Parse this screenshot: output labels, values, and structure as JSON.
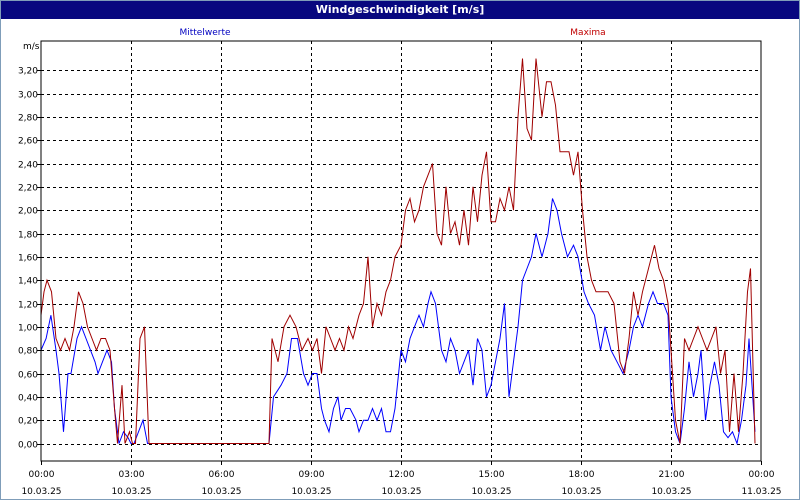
{
  "window": {
    "title": "Windgeschwindigkeit [m/s]"
  },
  "chart_data": {
    "type": "line",
    "title": "Windgeschwindigkeit [m/s]",
    "ylabel": "m/s",
    "xlabel": "",
    "ylim": [
      -0.15,
      3.45
    ],
    "xlim_hours": [
      0,
      24
    ],
    "grid": true,
    "y_ticks": [
      "0,00",
      "0,20",
      "0,40",
      "0,60",
      "0,80",
      "1,00",
      "1,20",
      "1,40",
      "1,60",
      "1,80",
      "2,00",
      "2,20",
      "2,40",
      "2,60",
      "2,80",
      "3,00",
      "3,20"
    ],
    "y_tick_values": [
      0,
      0.2,
      0.4,
      0.6,
      0.8,
      1.0,
      1.2,
      1.4,
      1.6,
      1.8,
      2.0,
      2.2,
      2.4,
      2.6,
      2.8,
      3.0,
      3.2
    ],
    "x_ticks": [
      {
        "time": "00:00",
        "date": "10.03.25",
        "hour": 0
      },
      {
        "time": "03:00",
        "date": "10.03.25",
        "hour": 3
      },
      {
        "time": "06:00",
        "date": "10.03.25",
        "hour": 6
      },
      {
        "time": "09:00",
        "date": "10.03.25",
        "hour": 9
      },
      {
        "time": "12:00",
        "date": "10.03.25",
        "hour": 12
      },
      {
        "time": "15:00",
        "date": "10.03.25",
        "hour": 15
      },
      {
        "time": "18:00",
        "date": "10.03.25",
        "hour": 18
      },
      {
        "time": "21:00",
        "date": "10.03.25",
        "hour": 21
      },
      {
        "time": "00:00",
        "date": "11.03.25",
        "hour": 24
      }
    ],
    "series": [
      {
        "name": "Mittelwerte",
        "color": "#0000ff",
        "points": [
          [
            0,
            0.8
          ],
          [
            0.17,
            0.9
          ],
          [
            0.33,
            1.1
          ],
          [
            0.5,
            0.8
          ],
          [
            0.6,
            0.6
          ],
          [
            0.75,
            0.1
          ],
          [
            0.9,
            0.6
          ],
          [
            1.0,
            0.6
          ],
          [
            1.2,
            0.9
          ],
          [
            1.35,
            1.0
          ],
          [
            1.5,
            0.9
          ],
          [
            1.65,
            0.8
          ],
          [
            1.8,
            0.7
          ],
          [
            1.9,
            0.6
          ],
          [
            2.05,
            0.7
          ],
          [
            2.2,
            0.8
          ],
          [
            2.35,
            0.7
          ],
          [
            2.45,
            0.3
          ],
          [
            2.6,
            0.0
          ],
          [
            2.75,
            0.1
          ],
          [
            2.9,
            0.05
          ],
          [
            3.0,
            0.0
          ],
          [
            3.1,
            0.0
          ],
          [
            3.25,
            0.1
          ],
          [
            3.4,
            0.2
          ],
          [
            3.55,
            0.0
          ],
          [
            3.6,
            0.0
          ],
          [
            7.5,
            0.0
          ],
          [
            7.6,
            0.0
          ],
          [
            7.75,
            0.4
          ],
          [
            8.0,
            0.5
          ],
          [
            8.2,
            0.6
          ],
          [
            8.35,
            0.9
          ],
          [
            8.55,
            0.9
          ],
          [
            8.75,
            0.6
          ],
          [
            8.9,
            0.5
          ],
          [
            9.05,
            0.6
          ],
          [
            9.2,
            0.6
          ],
          [
            9.35,
            0.3
          ],
          [
            9.45,
            0.2
          ],
          [
            9.6,
            0.1
          ],
          [
            9.75,
            0.3
          ],
          [
            9.9,
            0.4
          ],
          [
            10.0,
            0.2
          ],
          [
            10.15,
            0.3
          ],
          [
            10.3,
            0.3
          ],
          [
            10.5,
            0.2
          ],
          [
            10.6,
            0.1
          ],
          [
            10.75,
            0.2
          ],
          [
            10.9,
            0.2
          ],
          [
            11.05,
            0.3
          ],
          [
            11.2,
            0.2
          ],
          [
            11.35,
            0.3
          ],
          [
            11.5,
            0.1
          ],
          [
            11.65,
            0.1
          ],
          [
            11.8,
            0.3
          ],
          [
            12.0,
            0.8
          ],
          [
            12.15,
            0.7
          ],
          [
            12.3,
            0.9
          ],
          [
            12.45,
            1.0
          ],
          [
            12.6,
            1.1
          ],
          [
            12.75,
            1.0
          ],
          [
            12.9,
            1.2
          ],
          [
            13.0,
            1.3
          ],
          [
            13.15,
            1.2
          ],
          [
            13.35,
            0.8
          ],
          [
            13.5,
            0.7
          ],
          [
            13.65,
            0.9
          ],
          [
            13.8,
            0.8
          ],
          [
            13.95,
            0.6
          ],
          [
            14.1,
            0.7
          ],
          [
            14.25,
            0.8
          ],
          [
            14.4,
            0.5
          ],
          [
            14.55,
            0.9
          ],
          [
            14.7,
            0.8
          ],
          [
            14.85,
            0.4
          ],
          [
            15.0,
            0.5
          ],
          [
            15.15,
            0.7
          ],
          [
            15.3,
            0.9
          ],
          [
            15.45,
            1.2
          ],
          [
            15.6,
            0.4
          ],
          [
            15.75,
            0.7
          ],
          [
            15.9,
            1.0
          ],
          [
            16.05,
            1.4
          ],
          [
            16.2,
            1.5
          ],
          [
            16.35,
            1.6
          ],
          [
            16.5,
            1.8
          ],
          [
            16.7,
            1.6
          ],
          [
            16.9,
            1.8
          ],
          [
            17.05,
            2.1
          ],
          [
            17.2,
            2.0
          ],
          [
            17.35,
            1.8
          ],
          [
            17.55,
            1.6
          ],
          [
            17.75,
            1.7
          ],
          [
            17.9,
            1.6
          ],
          [
            18.1,
            1.3
          ],
          [
            18.25,
            1.2
          ],
          [
            18.45,
            1.1
          ],
          [
            18.65,
            0.8
          ],
          [
            18.8,
            1.0
          ],
          [
            19.0,
            0.8
          ],
          [
            19.2,
            0.7
          ],
          [
            19.4,
            0.6
          ],
          [
            19.6,
            0.8
          ],
          [
            19.75,
            1.0
          ],
          [
            19.9,
            1.1
          ],
          [
            20.05,
            1.0
          ],
          [
            20.25,
            1.2
          ],
          [
            20.4,
            1.3
          ],
          [
            20.55,
            1.2
          ],
          [
            20.75,
            1.2
          ],
          [
            20.9,
            1.1
          ],
          [
            21.0,
            0.4
          ],
          [
            21.15,
            0.1
          ],
          [
            21.3,
            0.0
          ],
          [
            21.45,
            0.3
          ],
          [
            21.6,
            0.7
          ],
          [
            21.75,
            0.4
          ],
          [
            21.9,
            0.6
          ],
          [
            22.0,
            0.8
          ],
          [
            22.15,
            0.2
          ],
          [
            22.3,
            0.5
          ],
          [
            22.45,
            0.7
          ],
          [
            22.6,
            0.5
          ],
          [
            22.75,
            0.1
          ],
          [
            22.9,
            0.05
          ],
          [
            23.05,
            0.1
          ],
          [
            23.2,
            0.0
          ],
          [
            23.35,
            0.2
          ],
          [
            23.5,
            0.5
          ],
          [
            23.6,
            0.9
          ],
          [
            23.7,
            0.5
          ],
          [
            23.8,
            0.1
          ]
        ]
      },
      {
        "name": "Maxima",
        "color": "#a00000",
        "points": [
          [
            0,
            1.1
          ],
          [
            0.1,
            1.3
          ],
          [
            0.2,
            1.4
          ],
          [
            0.35,
            1.3
          ],
          [
            0.5,
            0.9
          ],
          [
            0.65,
            0.8
          ],
          [
            0.8,
            0.9
          ],
          [
            0.95,
            0.8
          ],
          [
            1.1,
            1.0
          ],
          [
            1.25,
            1.3
          ],
          [
            1.4,
            1.2
          ],
          [
            1.55,
            1.0
          ],
          [
            1.7,
            0.9
          ],
          [
            1.85,
            0.8
          ],
          [
            2.0,
            0.9
          ],
          [
            2.15,
            0.9
          ],
          [
            2.3,
            0.8
          ],
          [
            2.45,
            0.3
          ],
          [
            2.55,
            0.0
          ],
          [
            2.7,
            0.5
          ],
          [
            2.8,
            0.0
          ],
          [
            2.95,
            0.1
          ],
          [
            3.05,
            0.0
          ],
          [
            3.15,
            0.0
          ],
          [
            3.3,
            0.9
          ],
          [
            3.45,
            1.0
          ],
          [
            3.6,
            0.0
          ],
          [
            7.5,
            0.0
          ],
          [
            7.6,
            0.0
          ],
          [
            7.7,
            0.9
          ],
          [
            7.9,
            0.7
          ],
          [
            8.1,
            1.0
          ],
          [
            8.3,
            1.1
          ],
          [
            8.5,
            1.0
          ],
          [
            8.7,
            0.8
          ],
          [
            8.9,
            0.9
          ],
          [
            9.05,
            0.8
          ],
          [
            9.2,
            0.9
          ],
          [
            9.35,
            0.6
          ],
          [
            9.5,
            1.0
          ],
          [
            9.65,
            0.9
          ],
          [
            9.8,
            0.8
          ],
          [
            9.95,
            0.9
          ],
          [
            10.1,
            0.8
          ],
          [
            10.25,
            1.0
          ],
          [
            10.4,
            0.9
          ],
          [
            10.6,
            1.1
          ],
          [
            10.75,
            1.2
          ],
          [
            10.9,
            1.6
          ],
          [
            11.05,
            1.0
          ],
          [
            11.2,
            1.2
          ],
          [
            11.35,
            1.1
          ],
          [
            11.5,
            1.3
          ],
          [
            11.65,
            1.4
          ],
          [
            11.8,
            1.6
          ],
          [
            12.0,
            1.7
          ],
          [
            12.15,
            2.0
          ],
          [
            12.3,
            2.1
          ],
          [
            12.45,
            1.9
          ],
          [
            12.6,
            2.0
          ],
          [
            12.75,
            2.2
          ],
          [
            12.9,
            2.3
          ],
          [
            13.05,
            2.4
          ],
          [
            13.2,
            1.8
          ],
          [
            13.35,
            1.7
          ],
          [
            13.5,
            2.2
          ],
          [
            13.65,
            1.8
          ],
          [
            13.8,
            1.9
          ],
          [
            13.95,
            1.7
          ],
          [
            14.1,
            2.0
          ],
          [
            14.25,
            1.7
          ],
          [
            14.4,
            2.2
          ],
          [
            14.55,
            1.9
          ],
          [
            14.7,
            2.3
          ],
          [
            14.85,
            2.5
          ],
          [
            15.0,
            1.9
          ],
          [
            15.15,
            1.9
          ],
          [
            15.3,
            2.1
          ],
          [
            15.45,
            2.0
          ],
          [
            15.6,
            2.2
          ],
          [
            15.75,
            2.0
          ],
          [
            15.9,
            2.8
          ],
          [
            16.05,
            3.3
          ],
          [
            16.2,
            2.7
          ],
          [
            16.35,
            2.6
          ],
          [
            16.5,
            3.3
          ],
          [
            16.7,
            2.8
          ],
          [
            16.85,
            3.1
          ],
          [
            17.0,
            3.1
          ],
          [
            17.15,
            2.9
          ],
          [
            17.3,
            2.5
          ],
          [
            17.45,
            2.5
          ],
          [
            17.6,
            2.5
          ],
          [
            17.75,
            2.3
          ],
          [
            17.9,
            2.5
          ],
          [
            18.05,
            2.0
          ],
          [
            18.2,
            1.6
          ],
          [
            18.35,
            1.4
          ],
          [
            18.5,
            1.3
          ],
          [
            18.7,
            1.3
          ],
          [
            18.9,
            1.3
          ],
          [
            19.1,
            1.2
          ],
          [
            19.3,
            0.7
          ],
          [
            19.45,
            0.6
          ],
          [
            19.6,
            0.9
          ],
          [
            19.75,
            1.3
          ],
          [
            19.9,
            1.1
          ],
          [
            20.05,
            1.3
          ],
          [
            20.25,
            1.5
          ],
          [
            20.45,
            1.7
          ],
          [
            20.6,
            1.5
          ],
          [
            20.75,
            1.4
          ],
          [
            20.9,
            1.2
          ],
          [
            21.0,
            0.8
          ],
          [
            21.15,
            0.2
          ],
          [
            21.3,
            0.0
          ],
          [
            21.45,
            0.9
          ],
          [
            21.6,
            0.8
          ],
          [
            21.75,
            0.9
          ],
          [
            21.9,
            1.0
          ],
          [
            22.05,
            0.9
          ],
          [
            22.2,
            0.8
          ],
          [
            22.35,
            0.9
          ],
          [
            22.5,
            1.0
          ],
          [
            22.65,
            0.6
          ],
          [
            22.8,
            0.8
          ],
          [
            22.95,
            0.1
          ],
          [
            23.1,
            0.6
          ],
          [
            23.25,
            0.1
          ],
          [
            23.4,
            0.6
          ],
          [
            23.55,
            1.3
          ],
          [
            23.65,
            1.5
          ],
          [
            23.8,
            0.0
          ]
        ]
      }
    ]
  }
}
